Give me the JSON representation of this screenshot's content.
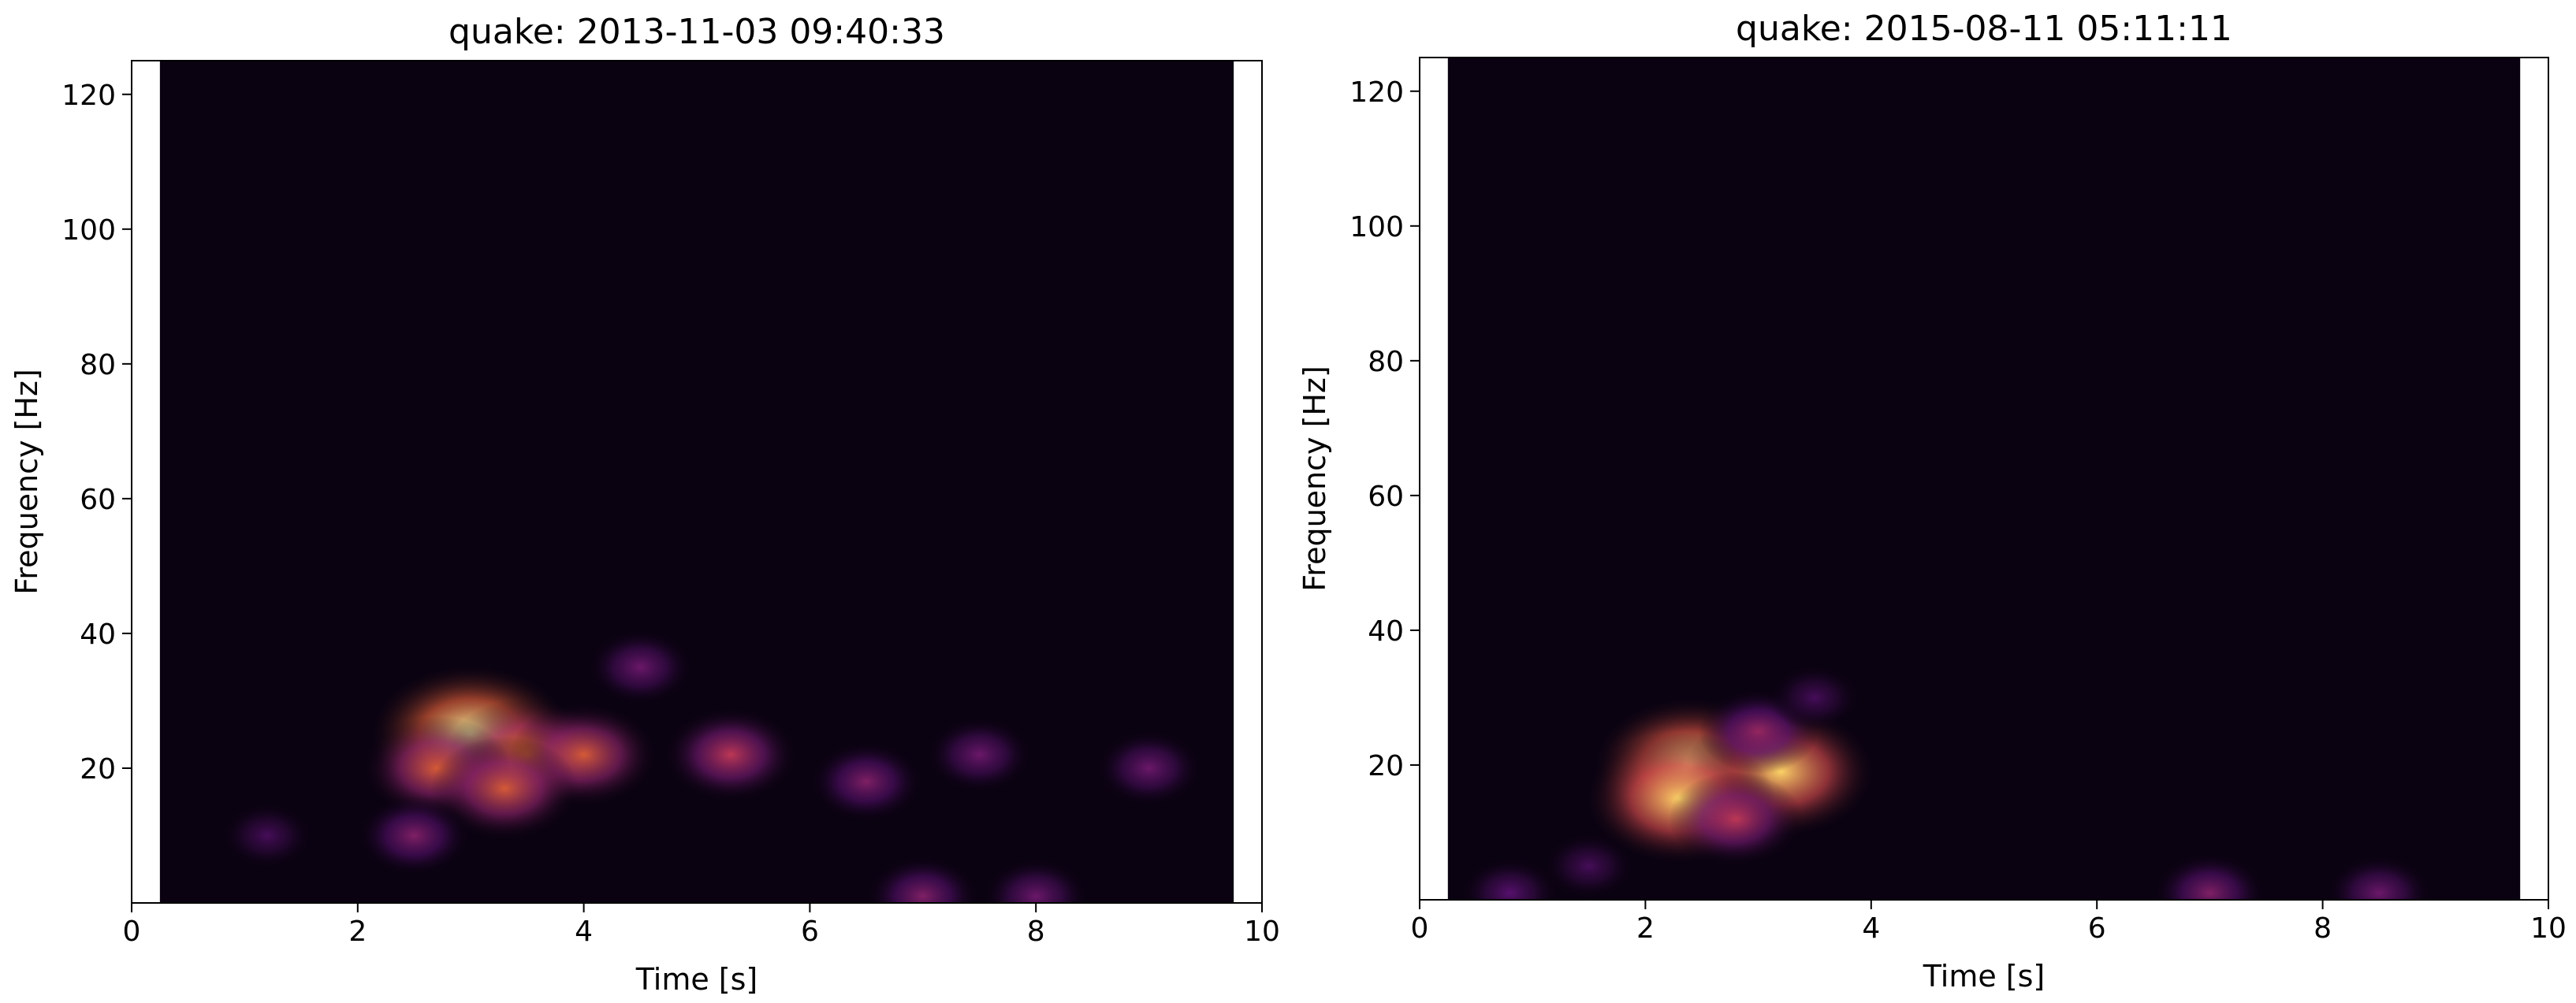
{
  "chart_data": [
    {
      "type": "spectrogram",
      "title": "quake: 2013-11-03 09:40:33",
      "x_label": "Time [s]",
      "y_label": "Frequency [Hz]",
      "xlim": [
        0,
        10
      ],
      "ylim": [
        0,
        125
      ],
      "extent": [
        0.25,
        9.75,
        0,
        125
      ],
      "xticks": [
        0,
        2,
        4,
        6,
        8,
        10
      ],
      "yticks": [
        20,
        40,
        60,
        80,
        100,
        120
      ],
      "x": [
        3.0,
        3.5,
        2.7,
        4.0,
        5.3,
        3.3,
        6.5,
        7.5,
        9.0,
        4.5,
        2.5,
        7.0,
        8.0,
        1.2
      ],
      "y": [
        25,
        22,
        20,
        22,
        22,
        17,
        18,
        22,
        20,
        35,
        10,
        1,
        1,
        10
      ],
      "values": [
        1.0,
        0.7,
        0.6,
        0.6,
        0.5,
        0.6,
        0.35,
        0.3,
        0.3,
        0.3,
        0.35,
        0.35,
        0.3,
        0.2
      ]
    },
    {
      "type": "spectrogram",
      "title": "quake: 2015-08-11 05:11:11",
      "x_label": "Time [s]",
      "y_label": "Frequency [Hz]",
      "xlim": [
        0,
        10
      ],
      "ylim": [
        0,
        125
      ],
      "extent": [
        0.25,
        9.75,
        0,
        125
      ],
      "xticks": [
        0,
        2,
        4,
        6,
        8,
        10
      ],
      "yticks": [
        20,
        40,
        60,
        80,
        100,
        120
      ],
      "x": [
        2.4,
        3.2,
        2.3,
        2.8,
        3.0,
        3.5,
        7.0,
        8.5,
        0.8,
        1.5
      ],
      "y": [
        20,
        19,
        15,
        12,
        25,
        30,
        1,
        1,
        1,
        5
      ],
      "values": [
        0.95,
        0.9,
        0.9,
        0.5,
        0.4,
        0.2,
        0.35,
        0.3,
        0.25,
        0.2
      ]
    }
  ]
}
